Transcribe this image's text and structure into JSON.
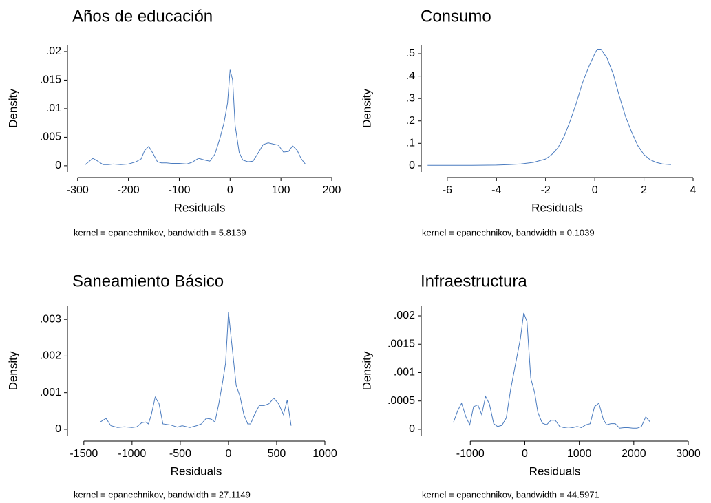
{
  "chart_data": [
    {
      "type": "line",
      "title": "Años de educación",
      "xlabel": "Residuals",
      "ylabel": "Density",
      "note": "kernel = epanechnikov, bandwidth = 5.8139",
      "color": "#4a7bbf",
      "x": [
        -285,
        -270,
        -262,
        -250,
        -240,
        -230,
        -215,
        -200,
        -185,
        -175,
        -168,
        -160,
        -152,
        -143,
        -135,
        -125,
        -115,
        -100,
        -85,
        -75,
        -62,
        -50,
        -40,
        -30,
        -20,
        -12,
        -5,
        0,
        5,
        10,
        18,
        25,
        35,
        45,
        55,
        65,
        75,
        85,
        95,
        105,
        115,
        123,
        132,
        140,
        148
      ],
      "values": [
        0.0002,
        0.0013,
        0.0009,
        0.0002,
        0.0002,
        0.0003,
        0.0002,
        0.0003,
        0.0007,
        0.0012,
        0.0027,
        0.0034,
        0.0022,
        0.0007,
        0.0005,
        0.0005,
        0.0004,
        0.0004,
        0.0003,
        0.0006,
        0.0013,
        0.001,
        0.0008,
        0.002,
        0.0048,
        0.0075,
        0.011,
        0.0168,
        0.015,
        0.007,
        0.0023,
        0.001,
        0.0007,
        0.0008,
        0.0022,
        0.0037,
        0.004,
        0.0038,
        0.0036,
        0.0024,
        0.0025,
        0.0035,
        0.0027,
        0.0012,
        0.0003
      ],
      "xlim": [
        -320,
        200
      ],
      "ylim": [
        -0.0011,
        0.0212
      ],
      "xticks": [
        -300,
        -200,
        -100,
        0,
        100,
        200
      ],
      "yticks": [
        0,
        {
          "value": 0.005,
          "label": ".005"
        },
        {
          "value": 0.01,
          "label": ".01"
        },
        {
          "value": 0.015,
          "label": ".015"
        },
        {
          "value": 0.02,
          "label": ".02"
        }
      ]
    },
    {
      "type": "line",
      "title": "Consumo",
      "xlabel": "Residuals",
      "ylabel": "Density",
      "note": "kernel = epanechnikov, bandwidth = 0.1039",
      "color": "#4a7bbf",
      "x": [
        -6.8,
        -6,
        -5,
        -4,
        -3.5,
        -3,
        -2.5,
        -2,
        -1.75,
        -1.5,
        -1.25,
        -1,
        -0.75,
        -0.5,
        -0.25,
        0,
        0.1,
        0.25,
        0.5,
        0.75,
        1,
        1.25,
        1.5,
        1.75,
        2,
        2.25,
        2.5,
        2.75,
        3.1
      ],
      "values": [
        0.002,
        0.002,
        0.002,
        0.003,
        0.005,
        0.008,
        0.015,
        0.03,
        0.05,
        0.08,
        0.13,
        0.2,
        0.28,
        0.37,
        0.44,
        0.5,
        0.52,
        0.52,
        0.48,
        0.41,
        0.31,
        0.22,
        0.15,
        0.09,
        0.05,
        0.027,
        0.015,
        0.008,
        0.005
      ],
      "xlim": [
        -7.06,
        4
      ],
      "ylim": [
        -0.028,
        0.54
      ],
      "xticks": [
        -6,
        -4,
        -2,
        0,
        2,
        4
      ],
      "yticks": [
        0,
        {
          "value": 0.1,
          "label": ".1"
        },
        {
          "value": 0.2,
          "label": ".2"
        },
        {
          "value": 0.3,
          "label": ".3"
        },
        {
          "value": 0.4,
          "label": ".4"
        },
        {
          "value": 0.5,
          "label": ".5"
        }
      ]
    },
    {
      "type": "line",
      "title": "Saneamiento Básico",
      "xlabel": "Residuals",
      "ylabel": "Density",
      "note": "kernel = epanechnikov, bandwidth = 27.1149",
      "color": "#4a7bbf",
      "x": [
        -1330,
        -1270,
        -1220,
        -1150,
        -1080,
        -1000,
        -950,
        -900,
        -860,
        -830,
        -800,
        -760,
        -720,
        -680,
        -600,
        -530,
        -480,
        -400,
        -330,
        -280,
        -230,
        -180,
        -140,
        -100,
        -60,
        -30,
        -10,
        0,
        40,
        80,
        120,
        160,
        200,
        230,
        270,
        320,
        370,
        420,
        470,
        520,
        570,
        610,
        650
      ],
      "values": [
        0.0002,
        0.0003,
        0.0001,
        5e-05,
        7e-05,
        5e-05,
        7e-05,
        0.00018,
        0.0002,
        0.00015,
        0.0004,
        0.00088,
        0.0007,
        0.00015,
        0.00012,
        6e-05,
        0.0001,
        5e-05,
        0.0001,
        0.00015,
        0.0003,
        0.00028,
        0.0002,
        0.0007,
        0.0013,
        0.0018,
        0.0027,
        0.0032,
        0.0022,
        0.0012,
        0.0009,
        0.0004,
        0.00015,
        0.00015,
        0.0004,
        0.00065,
        0.00065,
        0.0007,
        0.00085,
        0.0007,
        0.0004,
        0.0008,
        0.0001
      ],
      "xlim": [
        -1670,
        1000
      ],
      "ylim": [
        -0.00017,
        0.00336
      ],
      "xticks": [
        -1500,
        -1000,
        -500,
        0,
        500,
        1000
      ],
      "yticks": [
        0,
        {
          "value": 0.001,
          "label": ".001"
        },
        {
          "value": 0.002,
          "label": ".002"
        },
        {
          "value": 0.003,
          "label": ".003"
        }
      ]
    },
    {
      "type": "line",
      "title": "Infraestructura",
      "xlabel": "Residuals",
      "ylabel": "Density",
      "note": "kernel = epanechnikov, bandwidth = 44.5971",
      "color": "#4a7bbf",
      "x": [
        -1310,
        -1230,
        -1160,
        -1080,
        -1010,
        -940,
        -860,
        -790,
        -720,
        -650,
        -570,
        -500,
        -420,
        -340,
        -260,
        -160,
        -80,
        -20,
        40,
        110,
        180,
        240,
        320,
        400,
        480,
        560,
        640,
        720,
        800,
        880,
        960,
        1040,
        1120,
        1200,
        1280,
        1360,
        1440,
        1500,
        1580,
        1660,
        1740,
        1820,
        1900,
        1980,
        2060,
        2140,
        2220,
        2300
      ],
      "values": [
        0.00012,
        0.00033,
        0.00046,
        0.00022,
        8e-05,
        0.0004,
        0.00043,
        0.00026,
        0.00058,
        0.00045,
        0.0001,
        5e-05,
        7e-05,
        0.0002,
        0.0007,
        0.0012,
        0.0016,
        0.00205,
        0.0019,
        0.0009,
        0.00065,
        0.0003,
        0.00011,
        8e-05,
        0.00016,
        0.00016,
        5e-05,
        3e-05,
        4e-05,
        3e-05,
        5e-05,
        3e-05,
        8e-05,
        0.0001,
        0.0004,
        0.00046,
        0.00018,
        8e-05,
        0.0001,
        0.0001,
        2e-05,
        3e-05,
        3e-05,
        2e-05,
        2e-05,
        5e-05,
        0.00022,
        0.00013
      ],
      "xlim": [
        -1900,
        3000
      ],
      "ylim": [
        -0.00011,
        0.00217
      ],
      "xticks": [
        -1000,
        0,
        1000,
        2000,
        3000
      ],
      "yticks": [
        0,
        {
          "value": 0.0005,
          "label": ".0005"
        },
        {
          "value": 0.001,
          "label": ".001"
        },
        {
          "value": 0.0015,
          "label": ".0015"
        },
        {
          "value": 0.002,
          "label": ".002"
        }
      ]
    }
  ]
}
